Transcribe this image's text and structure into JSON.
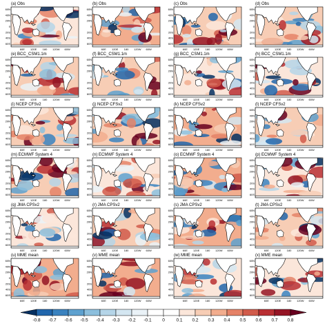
{
  "panels": [
    {
      "label": "(a) Obs"
    },
    {
      "label": "(b) Obs"
    },
    {
      "label": "(c) Obs"
    },
    {
      "label": "(d) Obs"
    },
    {
      "label": "(e) BCC_CSM1.1m"
    },
    {
      "label": "(f) BCC_CSM1.1m"
    },
    {
      "label": "(g) BCC_CSM1.1m"
    },
    {
      "label": "(h) BCC_CSM1.1m"
    },
    {
      "label": "(i) NCEP CFSv2"
    },
    {
      "label": "(j) NCEP CFSv2"
    },
    {
      "label": "(k) NCEP CFSv2"
    },
    {
      "label": "(l) NCEP CFSv2"
    },
    {
      "label": "(m) ECMWF System 4"
    },
    {
      "label": "(n) ECMWF System 4"
    },
    {
      "label": "(o) ECMWF System 4"
    },
    {
      "label": "(p) ECMWF System 4"
    },
    {
      "label": "(q) JMA CPSv2"
    },
    {
      "label": "(r) JMA CPSv2"
    },
    {
      "label": "(s) JMA CPSv2"
    },
    {
      "label": "(t) JMA CPSv2"
    },
    {
      "label": "(u) MME mean"
    },
    {
      "label": "(v) MME mean"
    },
    {
      "label": "(w) MME mean"
    },
    {
      "label": "(x) MME mean"
    }
  ],
  "lat_labels": [
    "60N",
    "40N",
    "20N",
    "0",
    "20S",
    "40S",
    "60S"
  ],
  "lon_labels": [
    "60E",
    "120E",
    "180",
    "120W",
    "60W"
  ],
  "colorbar": {
    "ticks": [
      -0.8,
      -0.7,
      -0.6,
      -0.5,
      -0.4,
      -0.3,
      -0.2,
      -0.1,
      0,
      0.1,
      0.2,
      0.3,
      0.4,
      0.5,
      0.6,
      0.7,
      0.8
    ],
    "colors": [
      "#053061",
      "#2166ac",
      "#3a82bf",
      "#5ea1cf",
      "#8cbfdd",
      "#b5d5e8",
      "#d4e6f1",
      "#eaf2f7",
      "#ffffff",
      "#ffffff",
      "#fbe6da",
      "#f7cdb5",
      "#f2ad8e",
      "#e58267",
      "#d15b4b",
      "#b92f33",
      "#951525",
      "#67001f"
    ]
  }
}
